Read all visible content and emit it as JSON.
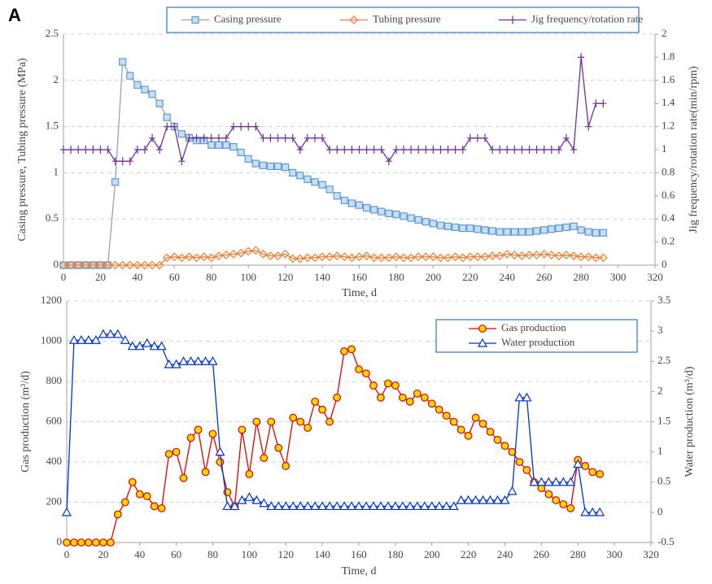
{
  "panel_label": "A",
  "chart_data": [
    {
      "type": "line",
      "xlabel": "Time, d",
      "ylabel": "Casing pressure, Tubing pressure    (MPa)",
      "y2label": "Jig frequency/rotation rate(min/rpm)",
      "xlim": [
        0,
        320
      ],
      "xticks": [
        0,
        20,
        40,
        60,
        80,
        100,
        120,
        140,
        160,
        180,
        200,
        220,
        240,
        260,
        280,
        300,
        320
      ],
      "ylim": [
        0,
        2.5
      ],
      "yticks": [
        0,
        0.5,
        1,
        1.5,
        2,
        2.5
      ],
      "y2lim": [
        0,
        2
      ],
      "y2ticks": [
        0,
        0.2,
        0.4,
        0.6,
        0.8,
        1,
        1.2,
        1.4,
        1.6,
        1.8,
        2
      ],
      "grid": true,
      "legend": "top",
      "x": [
        0,
        4,
        8,
        12,
        16,
        20,
        24,
        28,
        32,
        36,
        40,
        44,
        48,
        52,
        56,
        60,
        64,
        68,
        72,
        76,
        80,
        84,
        88,
        92,
        96,
        100,
        104,
        108,
        112,
        116,
        120,
        124,
        128,
        132,
        136,
        140,
        144,
        148,
        152,
        156,
        160,
        164,
        168,
        172,
        176,
        180,
        184,
        188,
        192,
        196,
        200,
        204,
        208,
        212,
        216,
        220,
        224,
        228,
        232,
        236,
        240,
        244,
        248,
        252,
        256,
        260,
        264,
        268,
        272,
        276,
        280,
        284,
        288,
        292
      ],
      "series": [
        {
          "name": "Casing pressure",
          "color": "#a0a0a0",
          "marker": "square",
          "marker_color": "#5b9bd5",
          "marker_fill": "#c9def2",
          "values": [
            0,
            0,
            0,
            0,
            0,
            0,
            0,
            0.9,
            2.2,
            2.05,
            1.95,
            1.9,
            1.85,
            1.75,
            1.6,
            1.5,
            1.42,
            1.38,
            1.35,
            1.35,
            1.3,
            1.3,
            1.3,
            1.28,
            1.22,
            1.15,
            1.1,
            1.08,
            1.07,
            1.07,
            1.06,
            1.0,
            0.97,
            0.93,
            0.9,
            0.87,
            0.82,
            0.75,
            0.7,
            0.67,
            0.65,
            0.62,
            0.6,
            0.58,
            0.56,
            0.55,
            0.53,
            0.51,
            0.49,
            0.47,
            0.45,
            0.43,
            0.42,
            0.41,
            0.4,
            0.4,
            0.39,
            0.38,
            0.37,
            0.36,
            0.36,
            0.36,
            0.36,
            0.36,
            0.37,
            0.38,
            0.39,
            0.4,
            0.41,
            0.42,
            0.38,
            0.36,
            0.35,
            0.35
          ]
        },
        {
          "name": "Tubing pressure",
          "color": "#ed7d31",
          "marker": "diamond",
          "marker_color": "#ed7d31",
          "marker_fill": "none",
          "values": [
            0,
            0,
            0,
            0,
            0,
            0,
            0,
            0,
            0,
            0,
            0,
            0,
            0,
            0,
            0.08,
            0.09,
            0.08,
            0.09,
            0.08,
            0.09,
            0.08,
            0.1,
            0.11,
            0.12,
            0.13,
            0.15,
            0.16,
            0.12,
            0.1,
            0.1,
            0.12,
            0.07,
            0.07,
            0.08,
            0.08,
            0.09,
            0.09,
            0.1,
            0.09,
            0.08,
            0.09,
            0.1,
            0.08,
            0.08,
            0.08,
            0.09,
            0.08,
            0.08,
            0.09,
            0.09,
            0.09,
            0.08,
            0.08,
            0.09,
            0.08,
            0.09,
            0.09,
            0.09,
            0.1,
            0.1,
            0.12,
            0.11,
            0.1,
            0.11,
            0.11,
            0.12,
            0.11,
            0.1,
            0.11,
            0.1,
            0.09,
            0.09,
            0.08,
            0.08
          ]
        },
        {
          "name": "Jig frequency/rotation rate",
          "color": "#7030a0",
          "marker": "plus",
          "marker_color": "#7030a0",
          "marker_fill": "none",
          "axis": "y2",
          "values": [
            1,
            1,
            1,
            1,
            1,
            1,
            1,
            0.9,
            0.9,
            0.9,
            1,
            1,
            1.1,
            1,
            1.2,
            1.2,
            0.9,
            1.1,
            1.1,
            1.1,
            1.1,
            1.1,
            1.1,
            1.2,
            1.2,
            1.2,
            1.2,
            1.1,
            1.1,
            1.1,
            1.1,
            1.1,
            1,
            1.1,
            1.1,
            1.1,
            1,
            1,
            1,
            1,
            1,
            1,
            1,
            1,
            0.9,
            1,
            1,
            1,
            1,
            1,
            1,
            1,
            1,
            1,
            1,
            1.1,
            1.1,
            1.1,
            1,
            1,
            1,
            1,
            1,
            1,
            1,
            1,
            1,
            1,
            1.1,
            1,
            1.8,
            1.2,
            1.4,
            1.4
          ]
        }
      ]
    },
    {
      "type": "line",
      "xlabel": "Time, d",
      "ylabel": "Gas production (m³/d)",
      "y2label": "Water production (m³/d)",
      "xlim": [
        0,
        320
      ],
      "xticks": [
        0,
        20,
        40,
        60,
        80,
        100,
        120,
        140,
        160,
        180,
        200,
        220,
        240,
        260,
        280,
        300,
        320
      ],
      "ylim": [
        0,
        1200
      ],
      "yticks": [
        0,
        200,
        400,
        600,
        800,
        1000,
        1200
      ],
      "y2lim": [
        -0.5,
        3.5
      ],
      "y2ticks": [
        -0.5,
        0,
        0.5,
        1,
        1.5,
        2,
        2.5,
        3,
        3.5
      ],
      "grid": true,
      "legend": "top-right",
      "x": [
        0,
        4,
        8,
        12,
        16,
        20,
        24,
        28,
        32,
        36,
        40,
        44,
        48,
        52,
        56,
        60,
        64,
        68,
        72,
        76,
        80,
        84,
        88,
        92,
        96,
        100,
        104,
        108,
        112,
        116,
        120,
        124,
        128,
        132,
        136,
        140,
        144,
        148,
        152,
        156,
        160,
        164,
        168,
        172,
        176,
        180,
        184,
        188,
        192,
        196,
        200,
        204,
        208,
        212,
        216,
        220,
        224,
        228,
        232,
        236,
        240,
        244,
        248,
        252,
        256,
        260,
        264,
        268,
        272,
        276,
        280,
        284,
        288,
        292
      ],
      "series": [
        {
          "name": "Gas production",
          "color": "#e00000",
          "marker": "circle",
          "marker_color": "#e00000",
          "marker_fill": "#ffd700",
          "values": [
            0,
            0,
            0,
            0,
            0,
            0,
            0,
            140,
            200,
            300,
            240,
            230,
            180,
            170,
            440,
            450,
            320,
            520,
            560,
            350,
            540,
            400,
            250,
            180,
            560,
            340,
            600,
            420,
            600,
            470,
            380,
            620,
            600,
            570,
            700,
            660,
            600,
            720,
            950,
            960,
            860,
            840,
            780,
            720,
            790,
            780,
            720,
            700,
            740,
            720,
            690,
            660,
            630,
            600,
            560,
            530,
            620,
            590,
            550,
            510,
            480,
            450,
            400,
            360,
            300,
            270,
            240,
            210,
            190,
            170,
            410,
            380,
            350,
            340
          ]
        },
        {
          "name": "Water production",
          "color": "#0033cc",
          "marker": "triangle",
          "marker_color": "#0033cc",
          "marker_fill": "#ffffff",
          "axis": "y2",
          "values": [
            0,
            2.85,
            2.85,
            2.85,
            2.85,
            2.95,
            2.95,
            2.95,
            2.85,
            2.75,
            2.75,
            2.8,
            2.75,
            2.75,
            2.45,
            2.45,
            2.5,
            2.5,
            2.5,
            2.5,
            2.5,
            1,
            0.1,
            0.1,
            0.2,
            0.25,
            0.2,
            0.15,
            0.1,
            0.1,
            0.1,
            0.1,
            0.1,
            0.1,
            0.1,
            0.1,
            0.1,
            0.1,
            0.1,
            0.1,
            0.1,
            0.1,
            0.1,
            0.1,
            0.1,
            0.1,
            0.1,
            0.1,
            0.1,
            0.1,
            0.1,
            0.1,
            0.1,
            0.1,
            0.2,
            0.2,
            0.2,
            0.2,
            0.2,
            0.2,
            0.2,
            0.35,
            1.9,
            1.9,
            0.5,
            0.5,
            0.5,
            0.5,
            0.5,
            0.5,
            0.8,
            0,
            0,
            0
          ]
        }
      ]
    }
  ]
}
